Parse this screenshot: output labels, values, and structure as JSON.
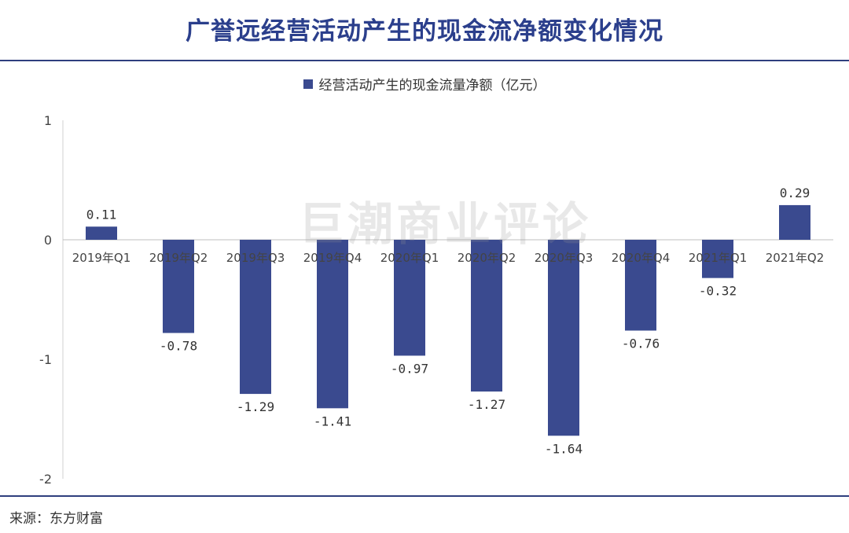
{
  "title": "广誉远经营活动产生的现金流净额变化情况",
  "watermark": "巨潮商业评论",
  "source": "来源：东方财富",
  "colors": {
    "bar": "#3a4a8f",
    "title": "#2b3f8c",
    "rule": "#2f3f7e"
  },
  "chart_data": {
    "type": "bar",
    "categories": [
      "2019年Q1",
      "2019年Q2",
      "2019年Q3",
      "2019年Q4",
      "2020年Q1",
      "2020年Q2",
      "2020年Q3",
      "2020年Q4",
      "2021年Q1",
      "2021年Q2"
    ],
    "series": [
      {
        "name": "经营活动产生的现金流量净额（亿元）",
        "values": [
          0.11,
          -0.78,
          -1.29,
          -1.41,
          -0.97,
          -1.27,
          -1.64,
          -0.76,
          -0.32,
          0.29
        ]
      }
    ],
    "data_labels": [
      "0.11",
      "-0.78",
      "-1.29",
      "-1.41",
      "-0.97",
      "-1.27",
      "-1.64",
      "-0.76",
      "-0.32",
      "0.29"
    ],
    "ylim": [
      -2,
      1
    ],
    "yticks": [
      "1",
      "0",
      "-1",
      "-2"
    ],
    "legend": "top-center",
    "grid": false
  }
}
